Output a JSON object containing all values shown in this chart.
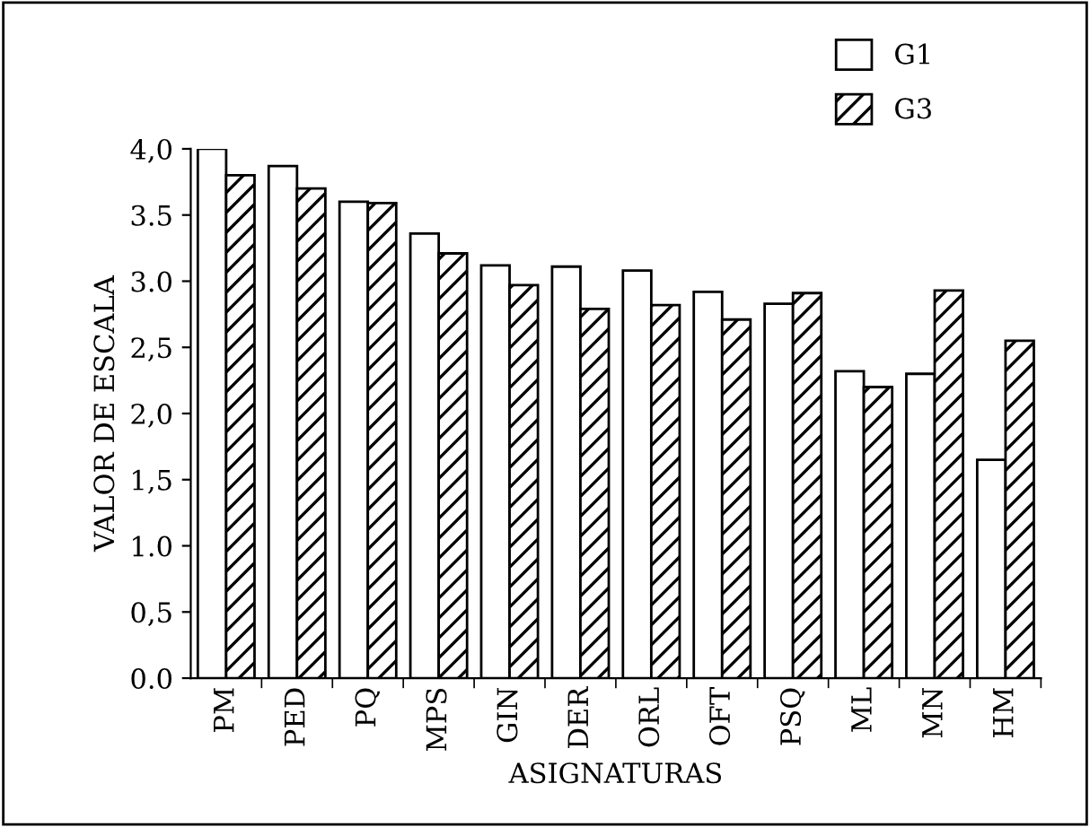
{
  "chart_data": {
    "type": "bar",
    "xlabel": "ASIGNATURAS",
    "ylabel": "VALOR DE ESCALA",
    "categories": [
      "PM",
      "PED",
      "PQ",
      "MPS",
      "GIN",
      "DER",
      "ORL",
      "OFT",
      "PSQ",
      "ML",
      "MN",
      "HM"
    ],
    "series": [
      {
        "name": "G1",
        "color": "#ffffff",
        "values": [
          4.0,
          3.87,
          3.6,
          3.36,
          3.12,
          3.11,
          3.08,
          2.92,
          2.83,
          2.32,
          2.3,
          1.65
        ]
      },
      {
        "name": "G3",
        "color": "#000000",
        "values": [
          3.8,
          3.7,
          3.59,
          3.21,
          2.97,
          2.79,
          2.82,
          2.71,
          2.91,
          2.2,
          2.93,
          2.55
        ]
      }
    ],
    "ylim": [
      0,
      4.0
    ],
    "yticks": [
      {
        "value": 0,
        "label": "0.0"
      },
      {
        "value": 0.5,
        "label": "0,5"
      },
      {
        "value": 1.0,
        "label": "1.0"
      },
      {
        "value": 1.5,
        "label": "1,5"
      },
      {
        "value": 2.0,
        "label": "2,0"
      },
      {
        "value": 2.5,
        "label": "2,5"
      },
      {
        "value": 3.0,
        "label": "3.0"
      },
      {
        "value": 3.5,
        "label": "3.5"
      },
      {
        "value": 4.0,
        "label": "4,0"
      }
    ],
    "legend": "top right",
    "grid": false
  }
}
